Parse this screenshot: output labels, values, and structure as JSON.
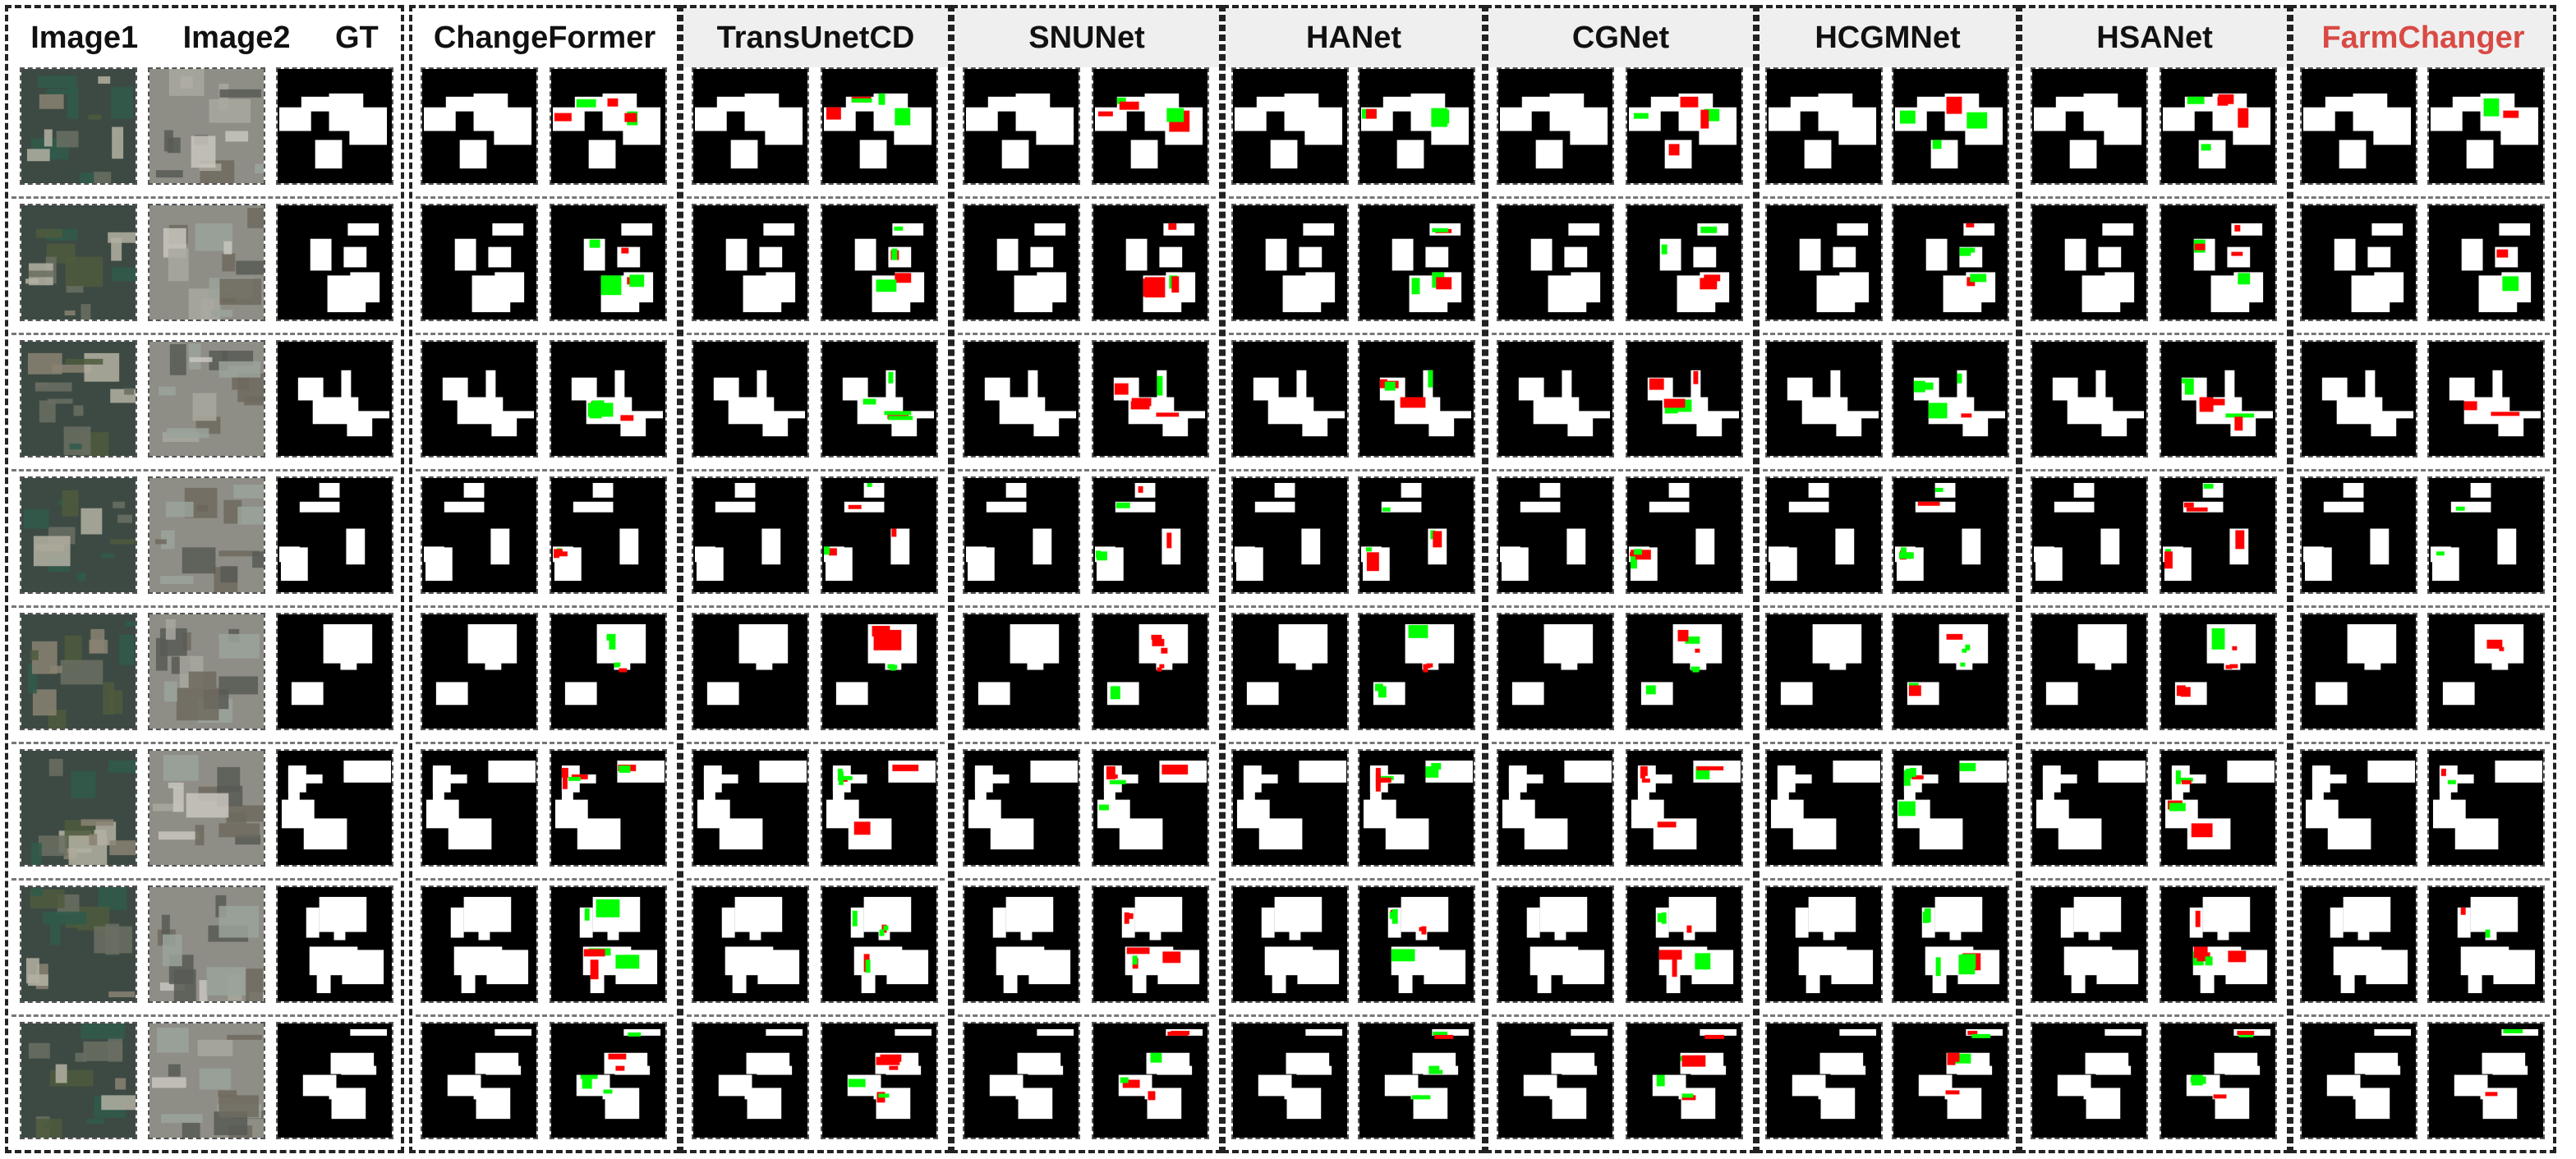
{
  "figure": {
    "input_columns": [
      "Image1",
      "Image2",
      "GT"
    ],
    "methods": [
      "ChangeFormer",
      "TransUnetCD",
      "SNUNet",
      "HANet",
      "CGNet",
      "HCGMNet",
      "HSANet",
      "FarmChanger"
    ],
    "highlighted_method": "FarmChanger",
    "row_count": 8,
    "colors": {
      "change": "#ffffff",
      "no_change": "#000000",
      "false_positive": "#ff0000",
      "false_negative": "#00ff00",
      "highlight_text": "#d94a45",
      "header_background": "#efefef"
    }
  }
}
